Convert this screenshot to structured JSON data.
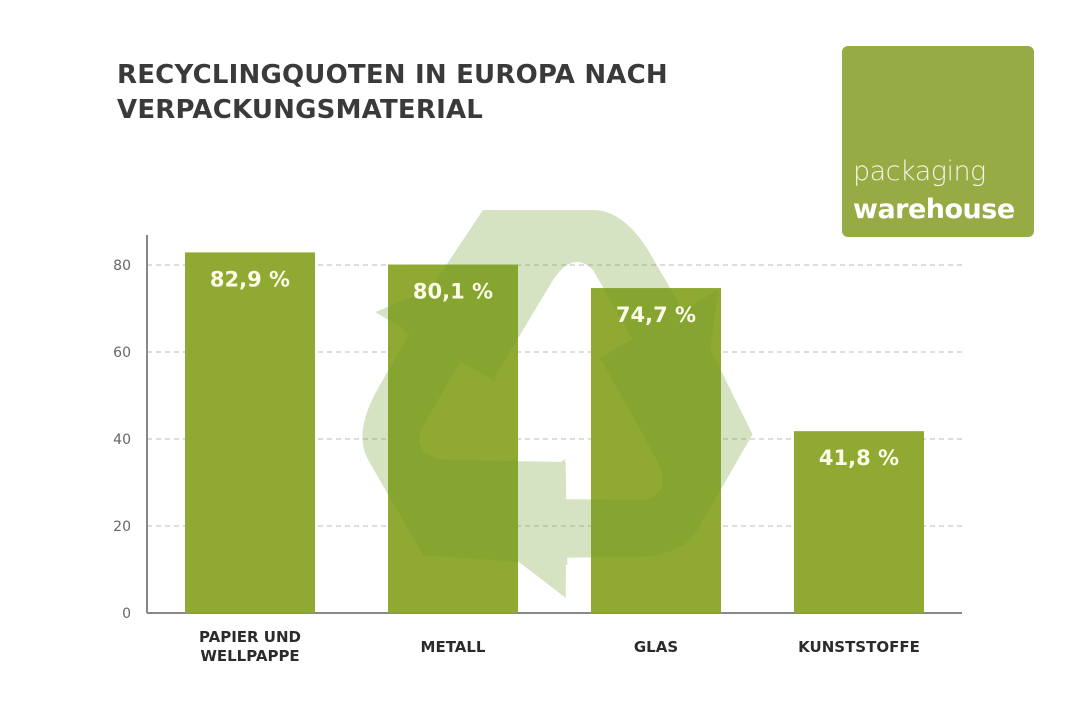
{
  "chart_data": {
    "type": "bar",
    "title": "RECYCLINGQUOTEN IN EUROPA NACH VERPACKUNGSMATERIAL",
    "categories": [
      [
        "PAPIER UND",
        "WELLPAPPE"
      ],
      [
        "METALL"
      ],
      [
        "GLAS"
      ],
      [
        "KUNSTSTOFFE"
      ]
    ],
    "values": [
      82.9,
      80.1,
      74.7,
      41.8
    ],
    "value_labels": [
      "82,9 %",
      "80,1 %",
      "74,7 %",
      "41,8 %"
    ],
    "yticks": [
      0,
      20,
      40,
      60,
      80
    ],
    "ylim": [
      0,
      87
    ],
    "grid": "horizontal dashed",
    "xlabel": "",
    "ylabel": "",
    "bar_color": "#8fa933",
    "background_icon": "recycling-symbol-icon"
  },
  "logo": {
    "line1": "packaging",
    "line2": "warehouse",
    "color": "#97ab45"
  }
}
